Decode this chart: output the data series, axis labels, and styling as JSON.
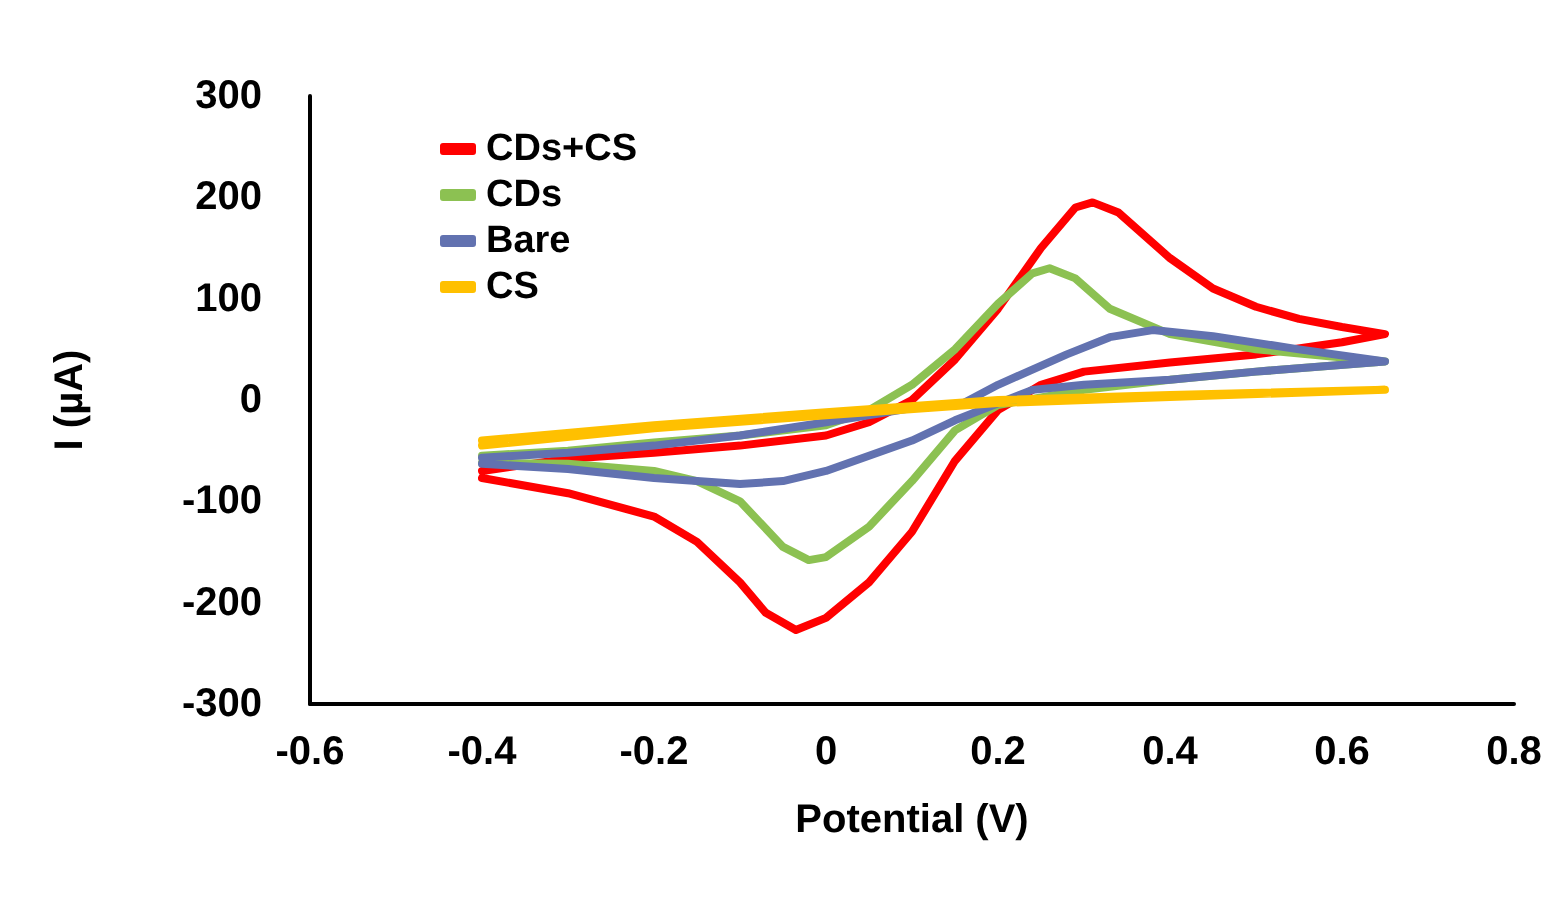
{
  "chart_data": {
    "type": "line",
    "xlabel": "Potential (V)",
    "ylabel": "I (µA)",
    "xlim": [
      -0.6,
      0.8
    ],
    "xticks": [
      -0.6,
      -0.4,
      -0.2,
      0,
      0.2,
      0.4,
      0.6,
      0.8
    ],
    "ylim": [
      -300,
      300
    ],
    "yticks": [
      -300,
      -200,
      -100,
      0,
      100,
      200,
      300
    ],
    "grid": false,
    "legend": "top left",
    "marker": "none",
    "line_style": "solid",
    "series": [
      {
        "name": "CDs+CS",
        "color": "#ff0000",
        "x": [
          -0.4,
          -0.3,
          -0.2,
          -0.1,
          0,
          0.05,
          0.1,
          0.15,
          0.2,
          0.25,
          0.29,
          0.31,
          0.34,
          0.4,
          0.45,
          0.5,
          0.55,
          0.6,
          0.65,
          0.6,
          0.5,
          0.4,
          0.3,
          0.25,
          0.2,
          0.15,
          0.1,
          0.05,
          0,
          -0.035,
          -0.07,
          -0.1,
          -0.15,
          -0.2,
          -0.3,
          -0.4
        ],
        "values": [
          -70,
          -58,
          -52,
          -45,
          -35,
          -22,
          0,
          40,
          90,
          150,
          190,
          195,
          185,
          140,
          110,
          92,
          80,
          72,
          65,
          57,
          45,
          37,
          28,
          15,
          -10,
          -60,
          -130,
          -180,
          -215,
          -227,
          -210,
          -180,
          -140,
          -115,
          -92,
          -77
        ]
      },
      {
        "name": "CDs",
        "color": "#8cc152",
        "x": [
          -0.4,
          -0.3,
          -0.2,
          -0.1,
          0,
          0.05,
          0.1,
          0.15,
          0.2,
          0.24,
          0.26,
          0.29,
          0.33,
          0.4,
          0.5,
          0.65,
          0.5,
          0.4,
          0.3,
          0.2,
          0.15,
          0.1,
          0.05,
          0,
          -0.02,
          -0.05,
          -0.1,
          -0.15,
          -0.2,
          -0.3,
          -0.4
        ],
        "values": [
          -55,
          -50,
          -42,
          -35,
          -25,
          -10,
          15,
          50,
          95,
          125,
          130,
          120,
          90,
          65,
          50,
          38,
          28,
          20,
          10,
          -5,
          -30,
          -80,
          -125,
          -155,
          -158,
          -145,
          -100,
          -80,
          -70,
          -63,
          -62
        ]
      },
      {
        "name": "Bare",
        "color": "#6272b0",
        "x": [
          -0.4,
          -0.3,
          -0.2,
          -0.1,
          0,
          0.1,
          0.16,
          0.2,
          0.28,
          0.33,
          0.38,
          0.45,
          0.55,
          0.65,
          0.5,
          0.4,
          0.3,
          0.24,
          0.15,
          0.1,
          0,
          -0.05,
          -0.1,
          -0.2,
          -0.3,
          -0.4
        ],
        "values": [
          -57,
          -52,
          -45,
          -35,
          -22,
          -8,
          -3,
          15,
          45,
          62,
          69,
          63,
          50,
          38,
          28,
          20,
          15,
          10,
          -20,
          -40,
          -70,
          -80,
          -83,
          -77,
          -68,
          -63
        ]
      },
      {
        "name": "CS",
        "color": "#ffc000",
        "x": [
          -0.4,
          -0.2,
          0,
          0.2,
          0.4,
          0.65,
          0.4,
          0.2,
          0,
          -0.2,
          -0.4
        ],
        "values": [
          -40,
          -25,
          -12,
          0,
          5,
          10,
          3,
          -3,
          -15,
          -28,
          -45
        ]
      }
    ]
  }
}
